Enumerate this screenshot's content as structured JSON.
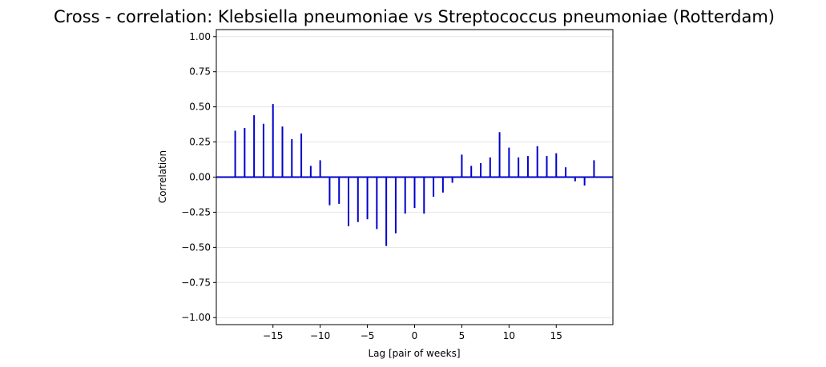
{
  "chart_data": {
    "type": "bar",
    "title": "Cross - correlation: Klebsiella pneumoniae vs Streptococcus pneumoniae (Rotterdam)",
    "xlabel": "Lag [pair of weeks]",
    "ylabel": "Correlation",
    "xlim": [
      -21,
      21
    ],
    "ylim": [
      -1.05,
      1.05
    ],
    "xticks": [
      -15,
      -10,
      -5,
      0,
      5,
      10,
      15
    ],
    "xtick_labels": [
      "−15",
      "−10",
      "−5",
      "0",
      "5",
      "10",
      "15"
    ],
    "yticks": [
      1.0,
      0.75,
      0.5,
      0.25,
      0.0,
      -0.25,
      -0.5,
      -0.75,
      -1.0
    ],
    "ytick_labels": [
      "1.00",
      "0.75",
      "0.50",
      "0.25",
      "0.00",
      "−0.25",
      "−0.50",
      "−0.75",
      "−1.00"
    ],
    "grid": "horizontal",
    "bar_color": "#0000cc",
    "zero_line_color": "#0000cc",
    "x": [
      -19,
      -18,
      -17,
      -16,
      -15,
      -14,
      -13,
      -12,
      -11,
      -10,
      -9,
      -8,
      -7,
      -6,
      -5,
      -4,
      -3,
      -2,
      -1,
      0,
      1,
      2,
      3,
      4,
      5,
      6,
      7,
      8,
      9,
      10,
      11,
      12,
      13,
      14,
      15,
      16,
      17,
      18,
      19
    ],
    "values": [
      0.33,
      0.35,
      0.44,
      0.38,
      0.52,
      0.36,
      0.27,
      0.31,
      0.08,
      0.12,
      -0.2,
      -0.19,
      -0.35,
      -0.32,
      -0.3,
      -0.37,
      -0.49,
      -0.4,
      -0.26,
      -0.22,
      -0.26,
      -0.14,
      -0.11,
      -0.04,
      0.16,
      0.08,
      0.1,
      0.14,
      0.32,
      0.21,
      0.14,
      0.15,
      0.22,
      0.15,
      0.17,
      0.07,
      -0.03,
      -0.06,
      0.12
    ]
  }
}
